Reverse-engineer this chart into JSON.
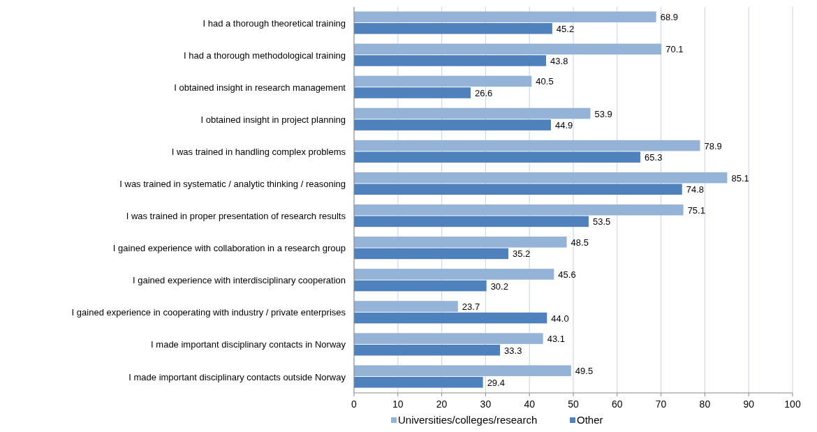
{
  "chart_data": {
    "type": "bar",
    "orientation": "horizontal",
    "categories": [
      "I had a thorough theoretical training",
      "I had a thorough methodological training",
      "I obtained insight in research management",
      "I obtained insight in project planning",
      "I was trained in handling complex problems",
      "I was trained in systematic / analytic thinking / reasoning",
      "I was trained in proper presentation of research results",
      "I gained experience with collaboration in a research group",
      "I gained experience with interdisciplinary cooperation",
      "I gained experience in cooperating with industry / private enterprises",
      "I made important disciplinary contacts in Norway",
      "I made important disciplinary contacts outside Norway"
    ],
    "series": [
      {
        "name": "Universities/colleges/research",
        "color": "#95b3d7",
        "values": [
          68.9,
          70.1,
          40.5,
          53.9,
          78.9,
          85.1,
          75.1,
          48.5,
          45.6,
          23.7,
          43.1,
          49.5
        ],
        "value_labels": [
          "68.9",
          "70.1",
          "40.5",
          "53.9",
          "78.9",
          "85.1",
          "75.1",
          "48.5",
          "45.6",
          "23.7",
          "43.1",
          "49.5"
        ]
      },
      {
        "name": "Other",
        "color": "#4f81bd",
        "values": [
          45.2,
          43.8,
          26.6,
          44.9,
          65.3,
          74.8,
          53.5,
          35.2,
          30.2,
          44.0,
          33.3,
          29.4
        ],
        "value_labels": [
          "45.2",
          "43.8",
          "26.6",
          "44.9",
          "65.3",
          "74.8",
          "53.5",
          "35.2",
          "30.2",
          "44.0",
          "33.3",
          "29.4"
        ]
      }
    ],
    "xlim": [
      0,
      100
    ],
    "xticks": [
      0,
      10,
      20,
      30,
      40,
      50,
      60,
      70,
      80,
      90,
      100
    ],
    "grid": "x",
    "legend": "bottom"
  }
}
